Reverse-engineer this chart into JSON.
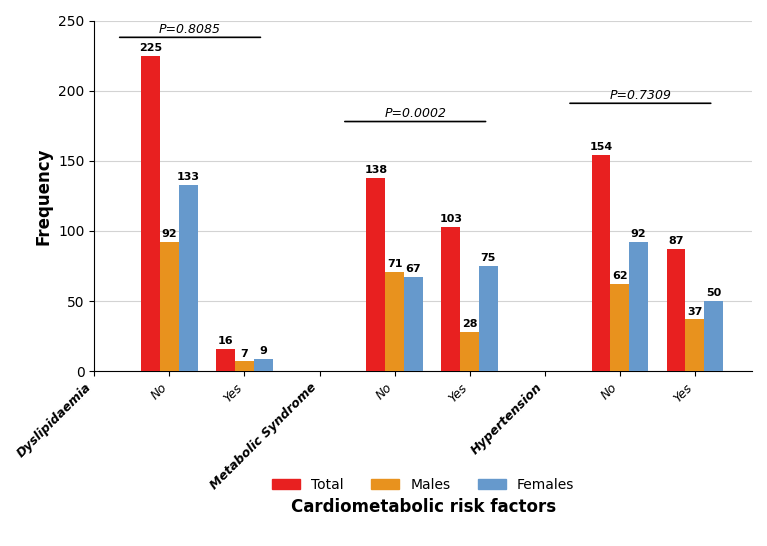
{
  "groups": [
    {
      "label": "Dyslipidaemia",
      "is_header": true,
      "values": [
        null,
        null,
        null
      ]
    },
    {
      "label": "No",
      "is_header": false,
      "values": [
        225,
        92,
        133
      ]
    },
    {
      "label": "Yes",
      "is_header": false,
      "values": [
        16,
        7,
        9
      ]
    },
    {
      "label": "Metabolic Syndrome",
      "is_header": true,
      "values": [
        null,
        null,
        null
      ]
    },
    {
      "label": "No",
      "is_header": false,
      "values": [
        138,
        71,
        67
      ]
    },
    {
      "label": "Yes",
      "is_header": false,
      "values": [
        103,
        28,
        75
      ]
    },
    {
      "label": "Hypertension",
      "is_header": true,
      "values": [
        null,
        null,
        null
      ]
    },
    {
      "label": "No",
      "is_header": false,
      "values": [
        154,
        62,
        92
      ]
    },
    {
      "label": "Yes",
      "is_header": false,
      "values": [
        87,
        37,
        50
      ]
    }
  ],
  "colors": [
    "#e82020",
    "#e8921e",
    "#6699cc"
  ],
  "legend_labels": [
    "Total",
    "Males",
    "Females"
  ],
  "ylabel": "Frequency",
  "xlabel": "Cardiometabolic risk factors",
  "ylim": [
    0,
    250
  ],
  "yticks": [
    0,
    50,
    100,
    150,
    200,
    250
  ],
  "bar_width": 0.25,
  "figsize": [
    7.67,
    5.46
  ],
  "dpi": 100
}
